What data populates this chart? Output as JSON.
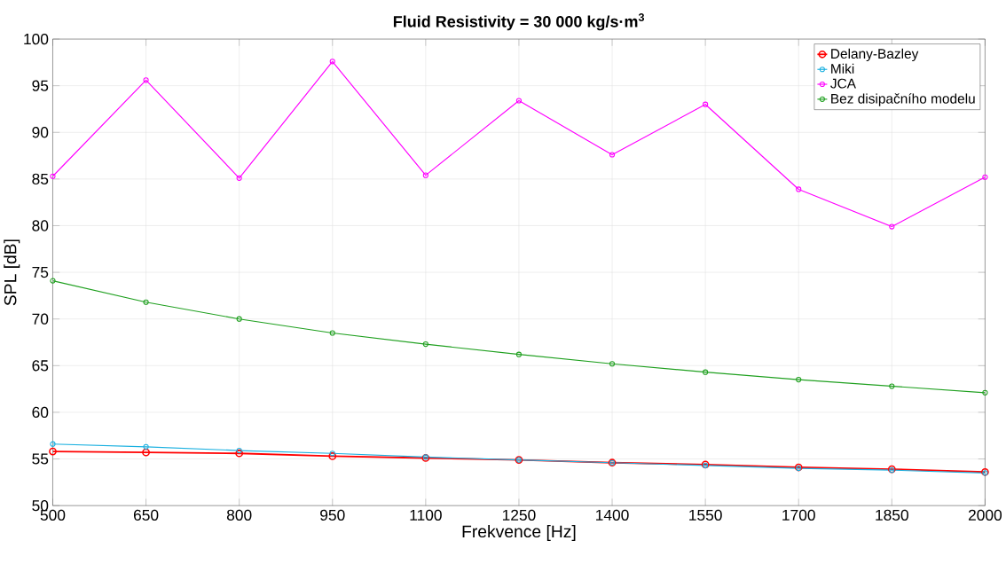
{
  "chart_data": {
    "type": "line",
    "title": "Fluid Resistivity = 30 000 kg/s·m$^{3}$",
    "xlabel": "Frekvence [Hz]",
    "ylabel": "SPL [dB]",
    "x": [
      500,
      650,
      800,
      950,
      1100,
      1250,
      1400,
      1550,
      1700,
      1850,
      2000
    ],
    "series": [
      {
        "name": "Delany-Bazley",
        "color": "#ff0000",
        "values": [
          55.8,
          55.7,
          55.6,
          55.3,
          55.1,
          54.9,
          54.6,
          54.4,
          54.1,
          53.9,
          53.6
        ]
      },
      {
        "name": "Miki",
        "color": "#1ab0e0",
        "values": [
          56.6,
          56.3,
          55.9,
          55.6,
          55.2,
          54.9,
          54.6,
          54.3,
          54.0,
          53.8,
          53.5
        ]
      },
      {
        "name": "JCA",
        "color": "#ff00ff",
        "values": [
          85.3,
          95.6,
          85.1,
          97.6,
          85.4,
          93.4,
          87.6,
          93.0,
          83.9,
          79.9,
          85.2
        ]
      },
      {
        "name": "Bez disipačního modelu",
        "color": "#20a020",
        "values": [
          74.1,
          71.8,
          70.0,
          68.5,
          67.3,
          66.2,
          65.2,
          64.3,
          63.5,
          62.8,
          62.1
        ]
      }
    ],
    "xlim": [
      500,
      2000
    ],
    "ylim": [
      50,
      100
    ],
    "xticks": [
      500,
      650,
      800,
      950,
      1100,
      1250,
      1400,
      1550,
      1700,
      1850,
      2000
    ],
    "yticks": [
      50,
      55,
      60,
      65,
      70,
      75,
      80,
      85,
      90,
      95,
      100
    ],
    "grid": true,
    "legend": "top right",
    "marker": "circle",
    "line_style": "solid"
  }
}
